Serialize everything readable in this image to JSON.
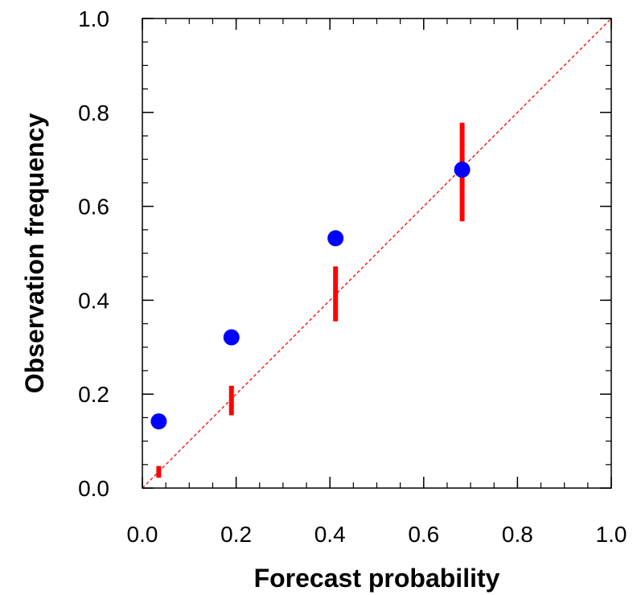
{
  "chart_data": {
    "type": "scatter",
    "title": "",
    "xlabel": "Forecast probability",
    "ylabel": "Observation frequency",
    "xlim": [
      0.0,
      1.0
    ],
    "ylim": [
      0.0,
      1.0
    ],
    "x_ticks": [
      "0.0",
      "0.2",
      "0.4",
      "0.6",
      "0.8",
      "1.0"
    ],
    "y_ticks": [
      "0.0",
      "0.2",
      "0.4",
      "0.6",
      "0.8",
      "1.0"
    ],
    "minor_tick_step": 0.05,
    "grid": false,
    "diagonal_reference": {
      "from": [
        0.0,
        0.0
      ],
      "to": [
        1.0,
        1.0
      ],
      "color": "#ff0000",
      "style": "dashed"
    },
    "points": [
      {
        "x": 0.035,
        "y": 0.142
      },
      {
        "x": 0.19,
        "y": 0.321
      },
      {
        "x": 0.412,
        "y": 0.532
      },
      {
        "x": 0.682,
        "y": 0.678
      }
    ],
    "intervals": [
      {
        "x": 0.035,
        "low": 0.022,
        "high": 0.047
      },
      {
        "x": 0.19,
        "low": 0.155,
        "high": 0.218
      },
      {
        "x": 0.412,
        "low": 0.355,
        "high": 0.472
      },
      {
        "x": 0.682,
        "low": 0.568,
        "high": 0.778
      }
    ],
    "colors": {
      "points": "#0000ff",
      "intervals": "#ff0000",
      "axes": "#000000"
    }
  }
}
